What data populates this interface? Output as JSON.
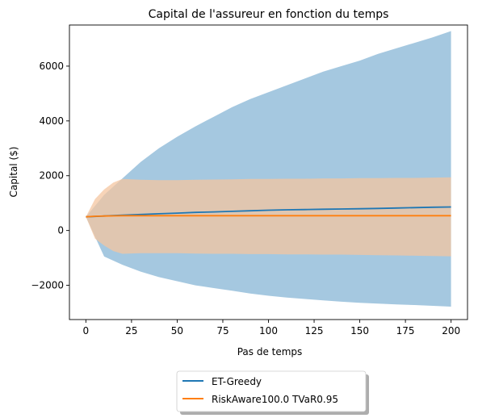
{
  "chart_data": {
    "type": "line",
    "title": "Capital de l'assureur en fonction du temps",
    "xlabel": "Pas de temps",
    "ylabel": "Capital ($)",
    "xlim": [
      -9,
      209
    ],
    "ylim": [
      -3250,
      7500
    ],
    "xticks": [
      0,
      25,
      50,
      75,
      100,
      125,
      150,
      175,
      200
    ],
    "yticks": [
      -2000,
      0,
      2000,
      4000,
      6000
    ],
    "ytick_labels": [
      "−2000",
      "0",
      "2000",
      "4000",
      "6000"
    ],
    "grid": false,
    "legend": {
      "placement": "bottom-center, below plot",
      "shadow": true
    },
    "series": [
      {
        "name": "ET-Greedy",
        "color": "#1f77b4",
        "band_color": "#a5c8e0",
        "x": [
          0,
          10,
          20,
          30,
          40,
          50,
          60,
          70,
          80,
          90,
          100,
          110,
          120,
          130,
          140,
          150,
          160,
          170,
          180,
          190,
          200
        ],
        "mean": [
          500,
          530,
          560,
          585,
          610,
          635,
          660,
          680,
          700,
          720,
          740,
          755,
          765,
          775,
          785,
          795,
          805,
          820,
          835,
          850,
          860
        ],
        "upper": [
          500,
          1300,
          1900,
          2500,
          3000,
          3420,
          3800,
          4150,
          4500,
          4800,
          5050,
          5300,
          5550,
          5800,
          6000,
          6200,
          6450,
          6650,
          6850,
          7050,
          7280
        ],
        "lower": [
          500,
          -950,
          -1250,
          -1500,
          -1700,
          -1850,
          -2000,
          -2100,
          -2200,
          -2300,
          -2380,
          -2450,
          -2500,
          -2550,
          -2600,
          -2640,
          -2670,
          -2700,
          -2720,
          -2750,
          -2780
        ]
      },
      {
        "name": "RiskAware100.0 TVaR0.95",
        "color": "#ff7f0e",
        "band_color": "#f4c6a0",
        "x": [
          0,
          5,
          10,
          15,
          20,
          30,
          40,
          50,
          60,
          70,
          80,
          90,
          100,
          110,
          120,
          130,
          140,
          150,
          160,
          170,
          180,
          190,
          200
        ],
        "mean": [
          500,
          520,
          530,
          535,
          540,
          540,
          540,
          540,
          540,
          540,
          540,
          540,
          540,
          540,
          540,
          540,
          540,
          540,
          540,
          540,
          540,
          540,
          540
        ],
        "upper": [
          500,
          1150,
          1500,
          1750,
          1880,
          1850,
          1840,
          1840,
          1850,
          1860,
          1870,
          1880,
          1880,
          1890,
          1890,
          1900,
          1900,
          1910,
          1910,
          1920,
          1920,
          1930,
          1940
        ],
        "lower": [
          500,
          -300,
          -550,
          -750,
          -850,
          -830,
          -830,
          -830,
          -840,
          -850,
          -850,
          -860,
          -860,
          -870,
          -870,
          -880,
          -880,
          -890,
          -900,
          -910,
          -920,
          -930,
          -940
        ]
      }
    ]
  }
}
